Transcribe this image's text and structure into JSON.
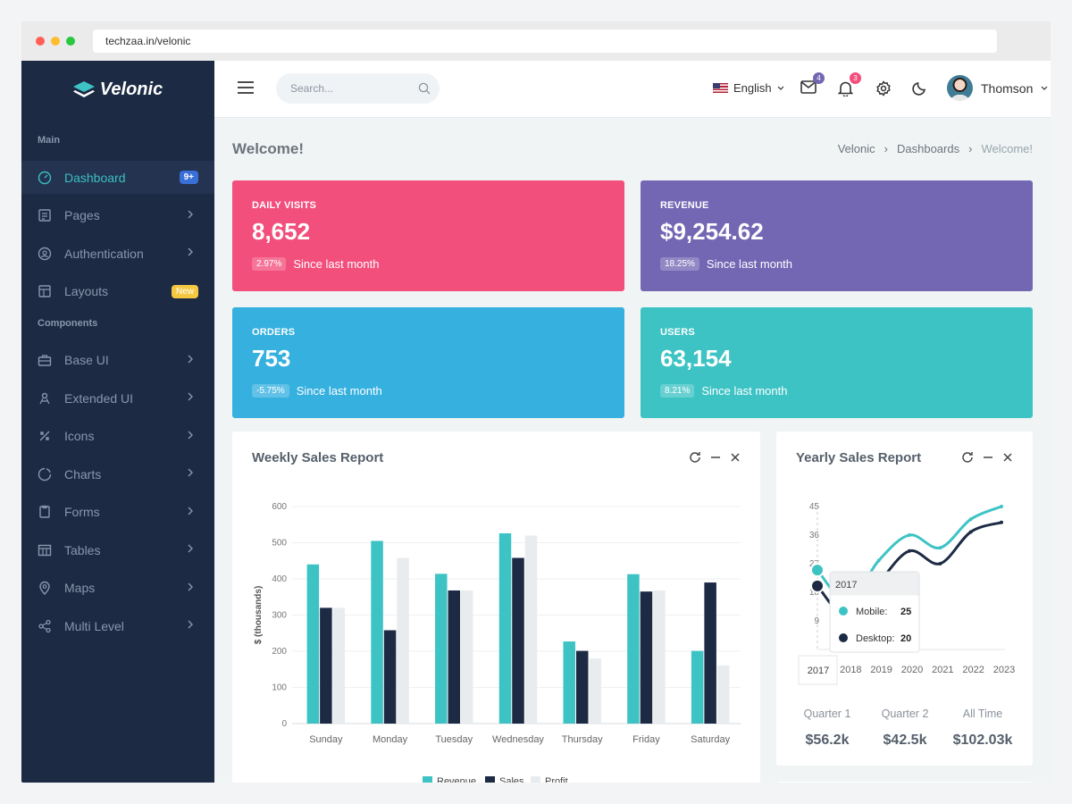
{
  "browser": {
    "url": "techzaa.in/velonic"
  },
  "brand": {
    "name": "Velonic"
  },
  "sidebar": {
    "sections": [
      {
        "label": "Main"
      },
      {
        "label": "Components"
      }
    ],
    "items": [
      {
        "label": "Dashboard",
        "icon": "dashboard-icon",
        "badge": "9+"
      },
      {
        "label": "Pages",
        "icon": "pages-icon"
      },
      {
        "label": "Authentication",
        "icon": "authentication-icon"
      },
      {
        "label": "Layouts",
        "icon": "layouts-icon",
        "badge": "New"
      },
      {
        "label": "Base UI",
        "icon": "briefcase-icon"
      },
      {
        "label": "Extended UI",
        "icon": "extended-ui-icon"
      },
      {
        "label": "Icons",
        "icon": "icons-icon"
      },
      {
        "label": "Charts",
        "icon": "charts-icon"
      },
      {
        "label": "Forms",
        "icon": "forms-icon"
      },
      {
        "label": "Tables",
        "icon": "tables-icon"
      },
      {
        "label": "Maps",
        "icon": "map-pin-icon"
      },
      {
        "label": "Multi Level",
        "icon": "share-icon"
      }
    ]
  },
  "topbar": {
    "search_placeholder": "Search...",
    "language": "English",
    "mail_count": "4",
    "notification_count": "3",
    "user_name": "Thomson"
  },
  "page": {
    "title": "Welcome!",
    "breadcrumb": [
      "Velonic",
      "Dashboards",
      "Welcome!"
    ]
  },
  "stats": [
    {
      "label": "DAILY VISITS",
      "value": "8,652",
      "pct": "2.97%",
      "note": "Since last month",
      "color": "#f24f7c"
    },
    {
      "label": "REVENUE",
      "value": "$9,254.62",
      "pct": "18.25%",
      "note": "Since last month",
      "color": "#7367b4"
    },
    {
      "label": "ORDERS",
      "value": "753",
      "pct": "-5.75%",
      "note": "Since last month",
      "color": "#35b0df"
    },
    {
      "label": "USERS",
      "value": "63,154",
      "pct": "8.21%",
      "note": "Since last month",
      "color": "#3ec3c5"
    }
  ],
  "weekly": {
    "title": "Weekly Sales Report",
    "chart_data": {
      "type": "bar",
      "categories": [
        "Sunday",
        "Monday",
        "Tuesday",
        "Wednesday",
        "Thursday",
        "Friday",
        "Saturday"
      ],
      "series": [
        {
          "name": "Revenue",
          "values": [
            440,
            505,
            414,
            526,
            227,
            413,
            201
          ],
          "color": "#3ec3c5"
        },
        {
          "name": "Sales",
          "values": [
            320,
            258,
            368,
            458,
            201,
            365,
            390
          ],
          "color": "#1c2a44"
        },
        {
          "name": "Profit",
          "values": [
            320,
            458,
            368,
            520,
            180,
            368,
            161
          ],
          "color": "#e9ecef"
        }
      ],
      "ylabel": "$ (thousands)",
      "ylim": [
        0,
        600
      ],
      "yticks": [
        0,
        100,
        200,
        300,
        400,
        500,
        600
      ],
      "grid": true,
      "legend": "bottom"
    }
  },
  "yearly": {
    "title": "Yearly Sales Report",
    "chart_data": {
      "type": "line",
      "x": [
        "2017",
        "2018",
        "2019",
        "2020",
        "2021",
        "2022",
        "2023"
      ],
      "series": [
        {
          "name": "Mobile",
          "values": [
            25,
            15,
            28,
            36,
            32,
            41,
            45
          ],
          "color": "#3ec3c5"
        },
        {
          "name": "Desktop",
          "values": [
            20,
            10,
            21,
            31,
            27,
            37,
            40
          ],
          "color": "#1c2a44"
        }
      ],
      "yticks": [
        9,
        18,
        27,
        36,
        45
      ],
      "ylim": [
        0,
        45
      ],
      "tooltip": {
        "title": "2017",
        "rows": [
          {
            "label": "Mobile:",
            "value": "25"
          },
          {
            "label": "Desktop:",
            "value": "20"
          }
        ]
      }
    },
    "summary": [
      {
        "label": "Quarter 1",
        "value": "$56.2k"
      },
      {
        "label": "Quarter 2",
        "value": "$42.5k"
      },
      {
        "label": "All Time",
        "value": "$102.03k"
      }
    ]
  }
}
